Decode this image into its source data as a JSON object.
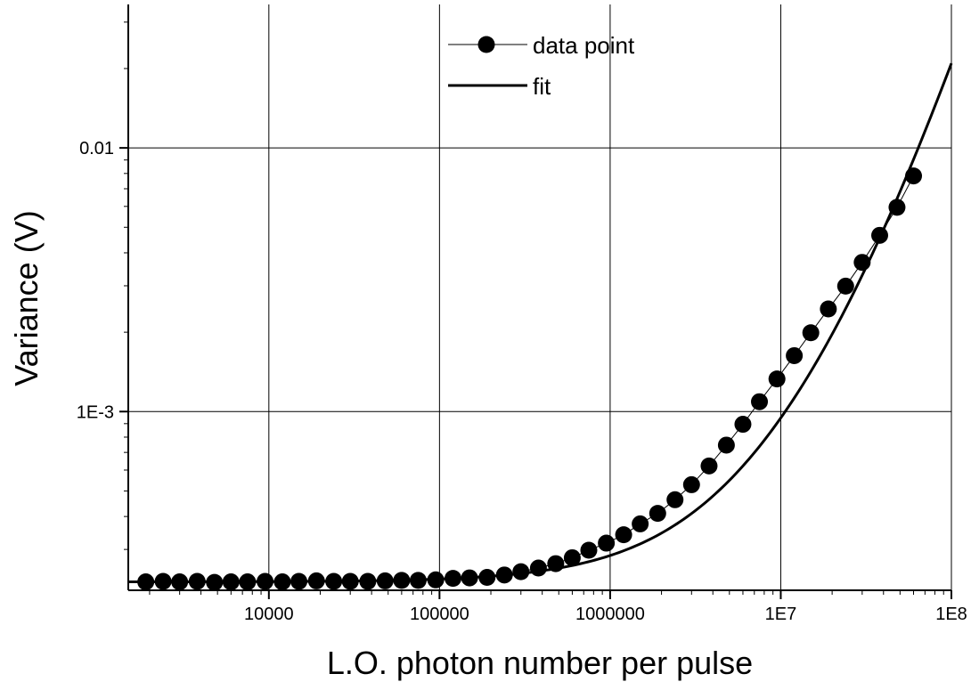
{
  "chart_data": {
    "type": "scatter",
    "title": "",
    "xlabel": "L.O. photon number per pulse",
    "ylabel": "Variance (V)",
    "xscale": "log",
    "yscale": "log",
    "xlim": [
      1500,
      100000000
    ],
    "ylim": [
      0.00021,
      0.035
    ],
    "x_ticks": [
      {
        "value": 10000,
        "label": "10000"
      },
      {
        "value": 100000,
        "label": "100000"
      },
      {
        "value": 1000000,
        "label": "1000000"
      },
      {
        "value": 10000000,
        "label": "1E7"
      },
      {
        "value": 100000000,
        "label": "1E8"
      }
    ],
    "y_ticks": [
      {
        "value": 0.001,
        "label": "1E-3"
      },
      {
        "value": 0.01,
        "label": "0.01"
      }
    ],
    "grid": true,
    "legend": {
      "placement": "top-center",
      "entries": [
        {
          "label": "data point",
          "style": "line-marker"
        },
        {
          "label": "fit",
          "style": "line"
        }
      ]
    },
    "series": [
      {
        "name": "data point",
        "kind": "scatter-line",
        "points": [
          [
            1900,
            0.000226
          ],
          [
            2400,
            0.000227
          ],
          [
            3000,
            0.000226
          ],
          [
            3800,
            0.000227
          ],
          [
            4800,
            0.000225
          ],
          [
            6000,
            0.000226
          ],
          [
            7500,
            0.000226
          ],
          [
            9500,
            0.000227
          ],
          [
            12000,
            0.000226
          ],
          [
            15000,
            0.000227
          ],
          [
            19000,
            0.000228
          ],
          [
            24000,
            0.000227
          ],
          [
            30000,
            0.000227
          ],
          [
            38000,
            0.000227
          ],
          [
            48000,
            0.000228
          ],
          [
            60000,
            0.000229
          ],
          [
            75000,
            0.000229
          ],
          [
            95000,
            0.00023
          ],
          [
            120000,
            0.000233
          ],
          [
            150000,
            0.000234
          ],
          [
            190000,
            0.000235
          ],
          [
            240000,
            0.00024
          ],
          [
            300000,
            0.000247
          ],
          [
            380000,
            0.000255
          ],
          [
            480000,
            0.000265
          ],
          [
            600000,
            0.000279
          ],
          [
            750000,
            0.000298
          ],
          [
            950000,
            0.000317
          ],
          [
            1200000,
            0.000341
          ],
          [
            1500000,
            0.000375
          ],
          [
            1900000,
            0.000411
          ],
          [
            2400000,
            0.000463
          ],
          [
            3000000,
            0.000528
          ],
          [
            3800000,
            0.000622
          ],
          [
            4800000,
            0.000746
          ],
          [
            6000000,
            0.000895
          ],
          [
            7500000,
            0.00109
          ],
          [
            9500000,
            0.00133
          ],
          [
            12000000,
            0.00163
          ],
          [
            15000000,
            0.00199
          ],
          [
            19000000,
            0.00245
          ],
          [
            24000000,
            0.00299
          ],
          [
            30000000,
            0.00368
          ],
          [
            38000000,
            0.00466
          ],
          [
            48000000,
            0.00595
          ],
          [
            60000000,
            0.00783
          ]
        ]
      },
      {
        "name": "fit",
        "kind": "line",
        "model": {
          "a": 0.000226,
          "b": 5.7e-11,
          "c": 1.5e-18
        }
      }
    ]
  }
}
